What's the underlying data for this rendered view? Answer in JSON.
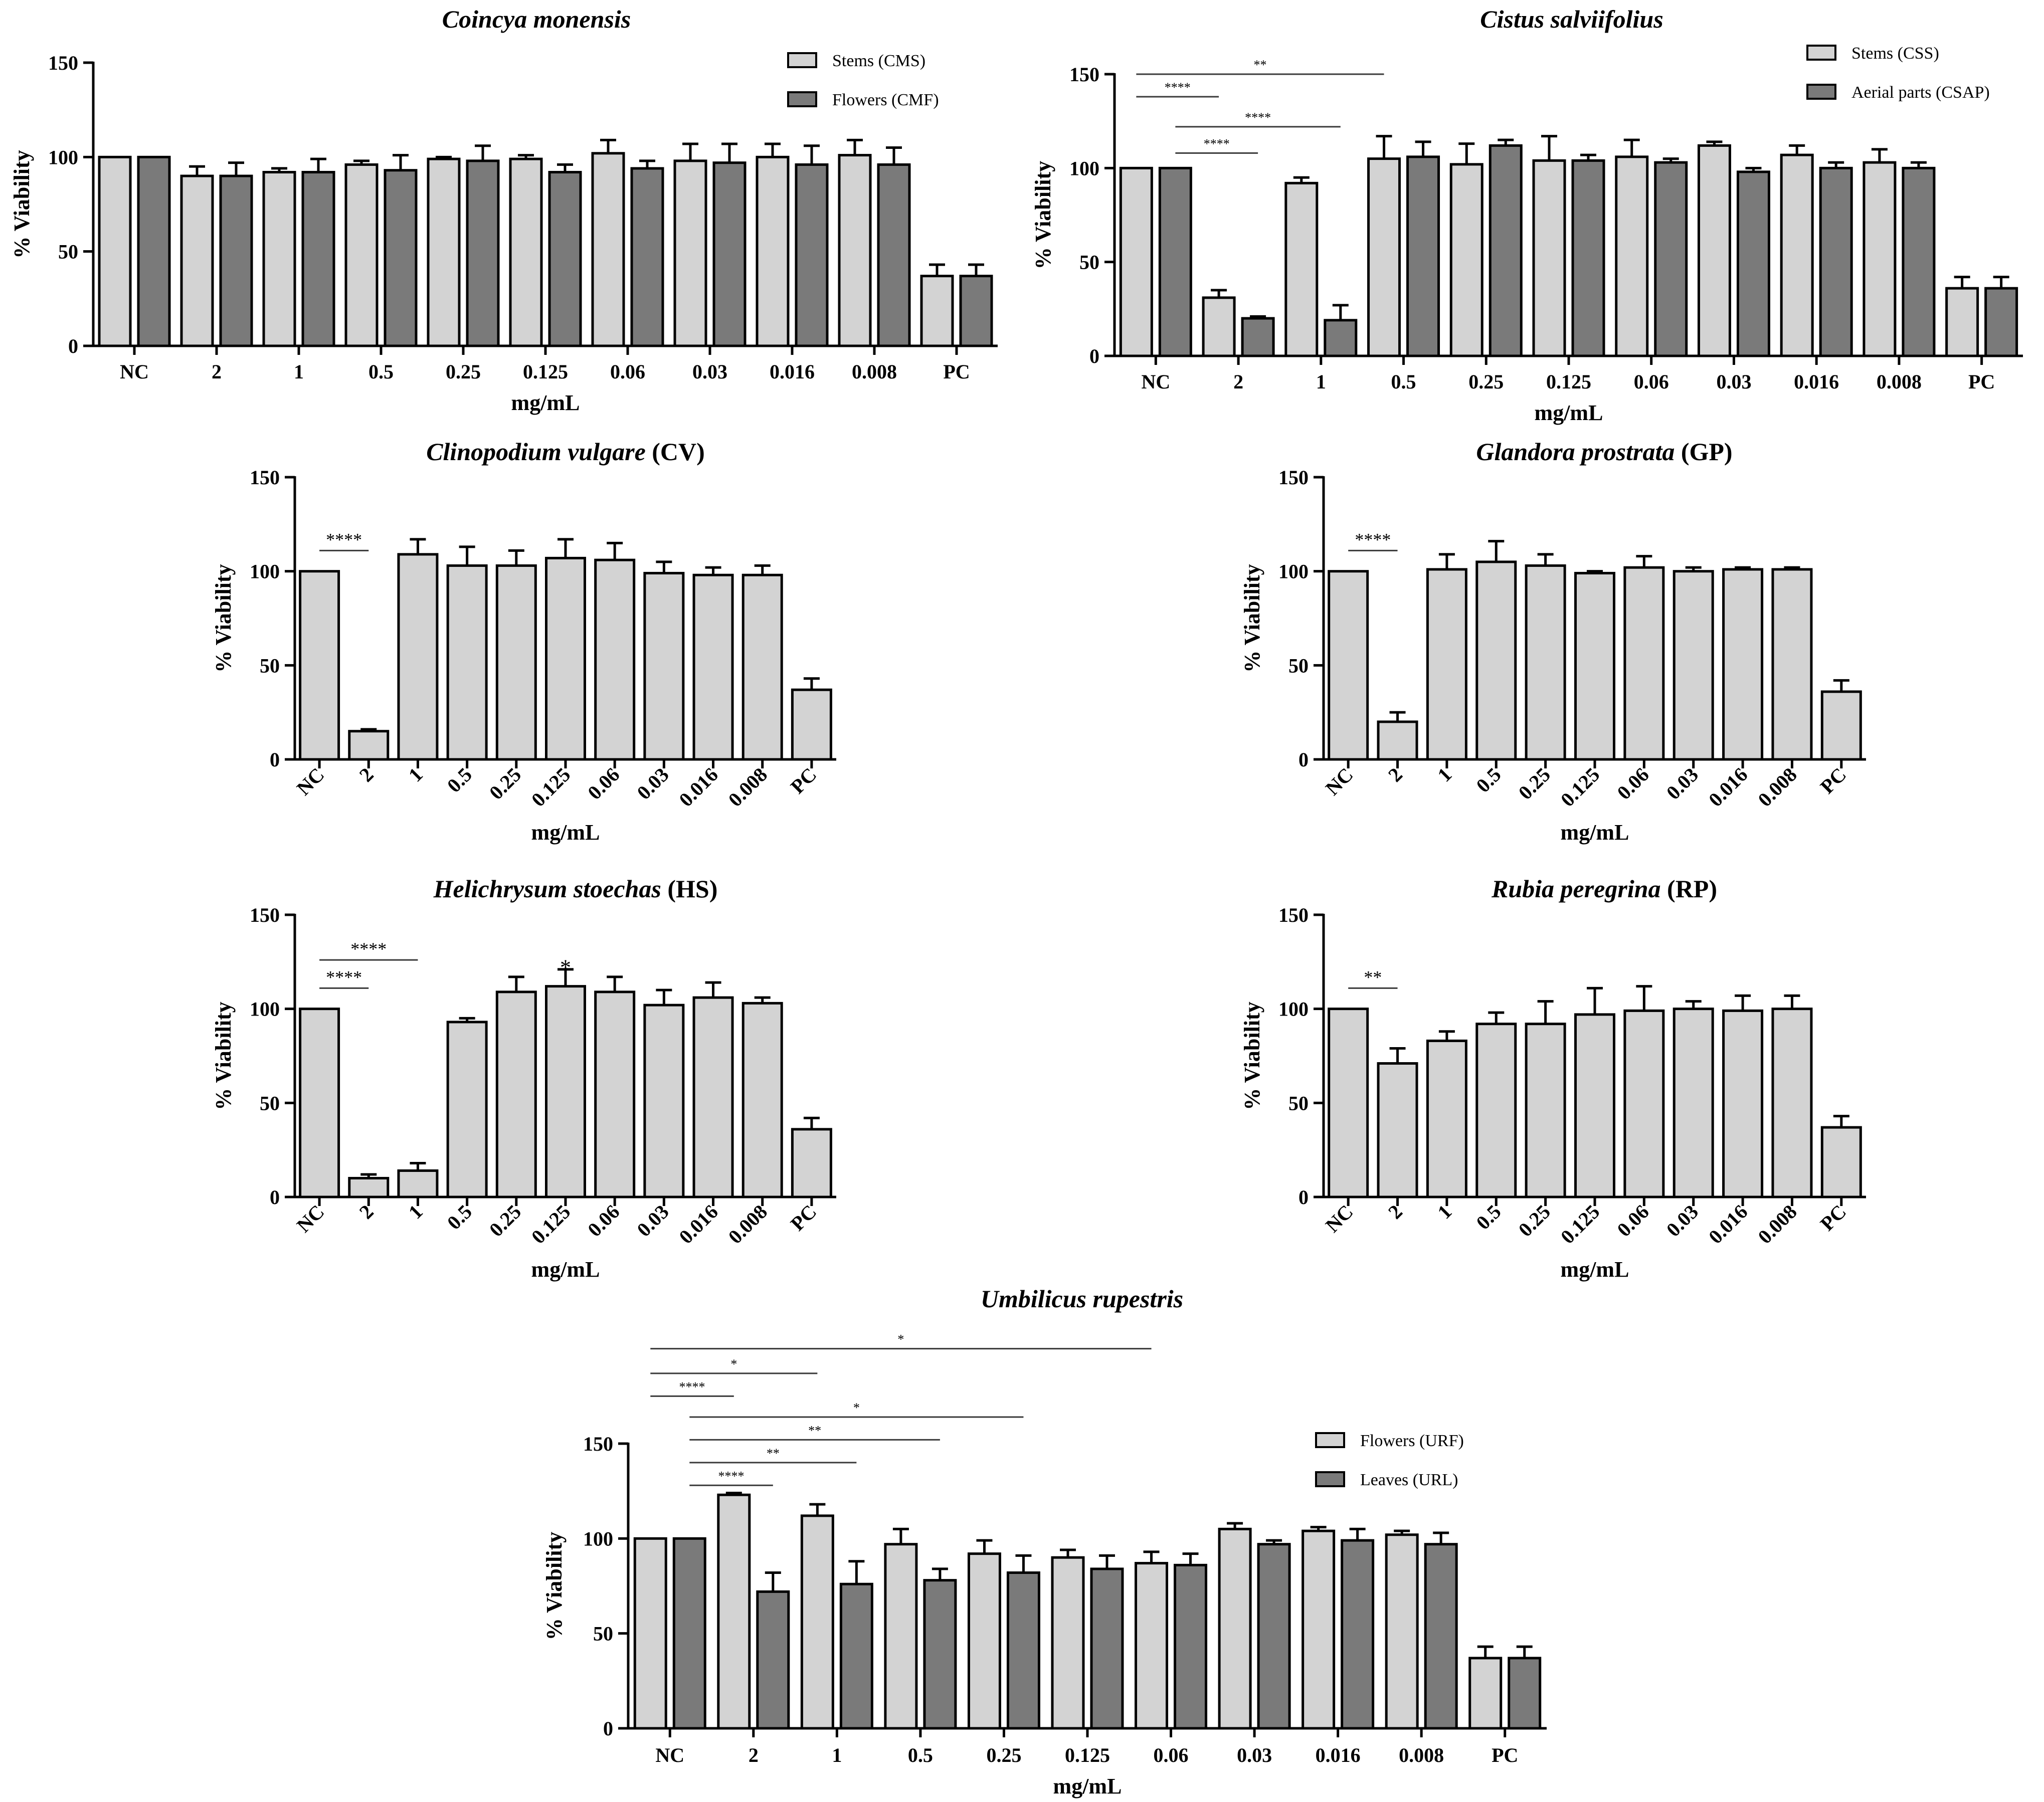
{
  "figure_type": "bar chart grid",
  "colors": {
    "series_light": "#d3d3d3",
    "series_dark": "#7a7a7a",
    "axis": "#000000",
    "sig_line": "#3a3a3a"
  },
  "chart_data": [
    {
      "id": "cm",
      "type": "bar",
      "title": "Coincya monensis",
      "title_suffix": "",
      "xlabel": "mg/mL",
      "ylabel": "% Viability",
      "ylim": [
        0,
        150
      ],
      "yticks": [
        0,
        50,
        100,
        150
      ],
      "tick_rotation": 0,
      "categories": [
        "NC",
        "2",
        "1",
        "0.5",
        "0.25",
        "0.125",
        "0.06",
        "0.03",
        "0.016",
        "0.008",
        "PC"
      ],
      "legend": "top-right",
      "series": [
        {
          "name": "Stems (CMS)",
          "color": "#d3d3d3",
          "values": [
            100,
            90,
            92,
            96,
            99,
            99,
            102,
            98,
            100,
            101,
            37
          ],
          "errors": [
            0,
            5,
            2,
            2,
            1,
            2,
            7,
            9,
            7,
            8,
            6
          ]
        },
        {
          "name": "Flowers (CMF)",
          "color": "#7a7a7a",
          "values": [
            100,
            90,
            92,
            93,
            98,
            92,
            94,
            97,
            96,
            96,
            37
          ],
          "errors": [
            0,
            7,
            7,
            8,
            8,
            4,
            4,
            10,
            10,
            9,
            6
          ]
        }
      ],
      "significance": []
    },
    {
      "id": "cs",
      "type": "bar",
      "title": "Cistus salviifolius",
      "title_suffix": "",
      "xlabel": "mg/mL",
      "ylabel": "% Viability",
      "ylim": [
        0,
        150
      ],
      "yticks": [
        0,
        50,
        100,
        150
      ],
      "tick_rotation": 0,
      "categories": [
        "NC",
        "2",
        "1",
        "0.5",
        "0.25",
        "0.125",
        "0.06",
        "0.03",
        "0.016",
        "0.008",
        "PC"
      ],
      "legend": "top-right",
      "series": [
        {
          "name": "Stems (CSS)",
          "color": "#d3d3d3",
          "values": [
            100,
            31,
            92,
            105,
            102,
            104,
            106,
            112,
            107,
            103,
            36
          ],
          "errors": [
            0,
            4,
            3,
            12,
            11,
            13,
            9,
            2,
            5,
            7,
            6
          ]
        },
        {
          "name": "Aerial parts (CSAP)",
          "color": "#7a7a7a",
          "values": [
            100,
            20,
            19,
            106,
            112,
            104,
            103,
            98,
            100,
            100,
            36
          ],
          "errors": [
            0,
            1,
            8,
            8,
            3,
            3,
            2,
            2,
            3,
            3,
            6
          ]
        }
      ],
      "significance": [
        {
          "from": [
            0,
            0
          ],
          "to": [
            3,
            0
          ],
          "y": 150,
          "label": "**"
        },
        {
          "from": [
            0,
            0
          ],
          "to": [
            1,
            0
          ],
          "y": 138,
          "label": "****"
        },
        {
          "from": [
            0,
            1
          ],
          "to": [
            2,
            1
          ],
          "y": 122,
          "label": "****"
        },
        {
          "from": [
            0,
            1
          ],
          "to": [
            1,
            1
          ],
          "y": 108,
          "label": "****"
        }
      ]
    },
    {
      "id": "cv",
      "type": "bar",
      "title": "Clinopodium vulgare",
      "title_suffix": " (CV)",
      "xlabel": "mg/mL",
      "ylabel": "% Viability",
      "ylim": [
        0,
        150
      ],
      "yticks": [
        0,
        50,
        100,
        150
      ],
      "tick_rotation": -45,
      "categories": [
        "NC",
        "2",
        "1",
        "0.5",
        "0.25",
        "0.125",
        "0.06",
        "0.03",
        "0.016",
        "0.008",
        "PC"
      ],
      "series": [
        {
          "name": "CV",
          "color": "#d3d3d3",
          "values": [
            100,
            15,
            109,
            103,
            103,
            107,
            106,
            99,
            98,
            98,
            37
          ],
          "errors": [
            0,
            1,
            8,
            10,
            8,
            10,
            9,
            6,
            4,
            5,
            6
          ]
        }
      ],
      "significance": [
        {
          "from": [
            0,
            0
          ],
          "to": [
            1,
            0
          ],
          "y": 111,
          "label": "****"
        }
      ]
    },
    {
      "id": "gp",
      "type": "bar",
      "title": "Glandora prostrata",
      "title_suffix": " (GP)",
      "xlabel": "mg/mL",
      "ylabel": "% Viability",
      "ylim": [
        0,
        150
      ],
      "yticks": [
        0,
        50,
        100,
        150
      ],
      "tick_rotation": -45,
      "categories": [
        "NC",
        "2",
        "1",
        "0.5",
        "0.25",
        "0.125",
        "0.06",
        "0.03",
        "0.016",
        "0.008",
        "PC"
      ],
      "series": [
        {
          "name": "GP",
          "color": "#d3d3d3",
          "values": [
            100,
            20,
            101,
            105,
            103,
            99,
            102,
            100,
            101,
            101,
            36
          ],
          "errors": [
            0,
            5,
            8,
            11,
            6,
            1,
            6,
            2,
            1,
            1,
            6
          ]
        }
      ],
      "significance": [
        {
          "from": [
            0,
            0
          ],
          "to": [
            1,
            0
          ],
          "y": 111,
          "label": "****"
        }
      ]
    },
    {
      "id": "hs",
      "type": "bar",
      "title": "Helichrysum stoechas",
      "title_suffix": " (HS)",
      "xlabel": "mg/mL",
      "ylabel": "% Viability",
      "ylim": [
        0,
        150
      ],
      "yticks": [
        0,
        50,
        100,
        150
      ],
      "tick_rotation": -45,
      "categories": [
        "NC",
        "2",
        "1",
        "0.5",
        "0.25",
        "0.125",
        "0.06",
        "0.03",
        "0.016",
        "0.008",
        "PC"
      ],
      "series": [
        {
          "name": "HS",
          "color": "#d3d3d3",
          "values": [
            100,
            10,
            14,
            93,
            109,
            112,
            109,
            102,
            106,
            103,
            36
          ],
          "errors": [
            0,
            2,
            4,
            2,
            8,
            9,
            8,
            8,
            8,
            3,
            6
          ]
        }
      ],
      "significance": [
        {
          "from": [
            0,
            0
          ],
          "to": [
            2,
            0
          ],
          "y": 126,
          "label": "****"
        },
        {
          "from": [
            0,
            0
          ],
          "to": [
            1,
            0
          ],
          "y": 111,
          "label": "****"
        },
        {
          "at": 5,
          "y": 123,
          "label": "*"
        }
      ]
    },
    {
      "id": "rp",
      "type": "bar",
      "title": "Rubia peregrina",
      "title_suffix": " (RP)",
      "xlabel": "mg/mL",
      "ylabel": "% Viability",
      "ylim": [
        0,
        150
      ],
      "yticks": [
        0,
        50,
        100,
        150
      ],
      "tick_rotation": -45,
      "categories": [
        "NC",
        "2",
        "1",
        "0.5",
        "0.25",
        "0.125",
        "0.06",
        "0.03",
        "0.016",
        "0.008",
        "PC"
      ],
      "series": [
        {
          "name": "RP",
          "color": "#d3d3d3",
          "values": [
            100,
            71,
            83,
            92,
            92,
            97,
            99,
            100,
            99,
            100,
            37
          ],
          "errors": [
            0,
            8,
            5,
            6,
            12,
            14,
            13,
            4,
            8,
            7,
            6
          ]
        }
      ],
      "significance": [
        {
          "from": [
            0,
            0
          ],
          "to": [
            1,
            0
          ],
          "y": 111,
          "label": "**"
        }
      ]
    },
    {
      "id": "ur",
      "type": "bar",
      "title": "Umbilicus rupestris",
      "title_suffix": "",
      "xlabel": "mg/mL",
      "ylabel": "% Viability",
      "ylim": [
        0,
        150
      ],
      "yticks": [
        0,
        50,
        100,
        150
      ],
      "tick_rotation": 0,
      "categories": [
        "NC",
        "2",
        "1",
        "0.5",
        "0.25",
        "0.125",
        "0.06",
        "0.03",
        "0.016",
        "0.008",
        "PC"
      ],
      "legend": "top-right",
      "series": [
        {
          "name": "Flowers (URF)",
          "color": "#d3d3d3",
          "values": [
            100,
            123,
            112,
            97,
            92,
            90,
            87,
            105,
            104,
            102,
            37
          ],
          "errors": [
            0,
            1,
            6,
            8,
            7,
            4,
            6,
            3,
            2,
            2,
            6
          ]
        },
        {
          "name": "Leaves (URL)",
          "color": "#7a7a7a",
          "values": [
            100,
            72,
            76,
            78,
            82,
            84,
            86,
            97,
            99,
            97,
            37
          ],
          "errors": [
            0,
            10,
            12,
            6,
            9,
            7,
            6,
            2,
            6,
            6,
            6
          ]
        }
      ],
      "significance": [
        {
          "from": [
            0,
            0
          ],
          "to": [
            6,
            0
          ],
          "y": 200,
          "label": "*"
        },
        {
          "from": [
            0,
            0
          ],
          "to": [
            2,
            0
          ],
          "y": 187,
          "label": "*"
        },
        {
          "from": [
            0,
            0
          ],
          "to": [
            1,
            0
          ],
          "y": 175,
          "label": "****"
        },
        {
          "from": [
            0,
            1
          ],
          "to": [
            4,
            1
          ],
          "y": 164,
          "label": "*"
        },
        {
          "from": [
            0,
            1
          ],
          "to": [
            3,
            1
          ],
          "y": 152,
          "label": "**"
        },
        {
          "from": [
            0,
            1
          ],
          "to": [
            2,
            1
          ],
          "y": 140,
          "label": "**"
        },
        {
          "from": [
            0,
            1
          ],
          "to": [
            1,
            1
          ],
          "y": 128,
          "label": "****"
        }
      ]
    }
  ]
}
